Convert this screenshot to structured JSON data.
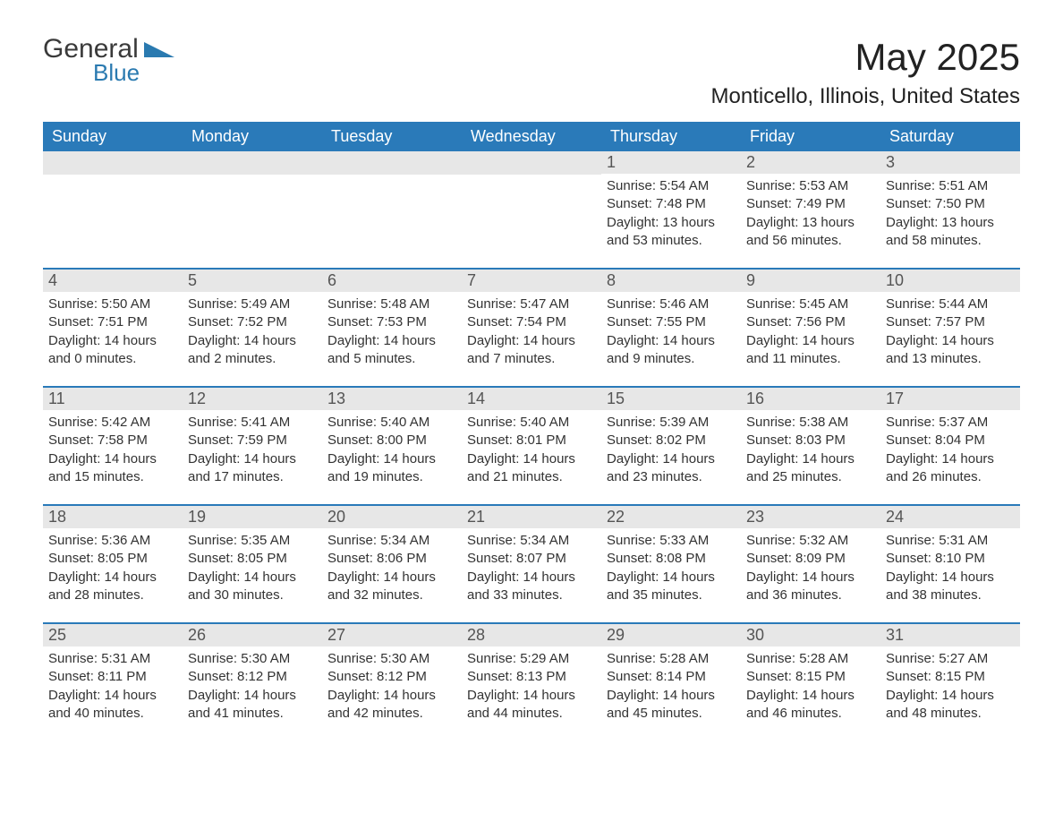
{
  "logo": {
    "part1": "General",
    "part2": "Blue"
  },
  "title": "May 2025",
  "location": "Monticello, Illinois, United States",
  "day_names": [
    "Sunday",
    "Monday",
    "Tuesday",
    "Wednesday",
    "Thursday",
    "Friday",
    "Saturday"
  ],
  "colors": {
    "header_bg": "#2a7ab9",
    "header_text": "#ffffff",
    "daynum_bg": "#e7e7e7",
    "border": "#2a7ab9",
    "logo_accent": "#2a7ab0"
  },
  "weeks": [
    [
      null,
      null,
      null,
      null,
      {
        "day": "1",
        "sunrise": "Sunrise: 5:54 AM",
        "sunset": "Sunset: 7:48 PM",
        "daylight1": "Daylight: 13 hours",
        "daylight2": "and 53 minutes."
      },
      {
        "day": "2",
        "sunrise": "Sunrise: 5:53 AM",
        "sunset": "Sunset: 7:49 PM",
        "daylight1": "Daylight: 13 hours",
        "daylight2": "and 56 minutes."
      },
      {
        "day": "3",
        "sunrise": "Sunrise: 5:51 AM",
        "sunset": "Sunset: 7:50 PM",
        "daylight1": "Daylight: 13 hours",
        "daylight2": "and 58 minutes."
      }
    ],
    [
      {
        "day": "4",
        "sunrise": "Sunrise: 5:50 AM",
        "sunset": "Sunset: 7:51 PM",
        "daylight1": "Daylight: 14 hours",
        "daylight2": "and 0 minutes."
      },
      {
        "day": "5",
        "sunrise": "Sunrise: 5:49 AM",
        "sunset": "Sunset: 7:52 PM",
        "daylight1": "Daylight: 14 hours",
        "daylight2": "and 2 minutes."
      },
      {
        "day": "6",
        "sunrise": "Sunrise: 5:48 AM",
        "sunset": "Sunset: 7:53 PM",
        "daylight1": "Daylight: 14 hours",
        "daylight2": "and 5 minutes."
      },
      {
        "day": "7",
        "sunrise": "Sunrise: 5:47 AM",
        "sunset": "Sunset: 7:54 PM",
        "daylight1": "Daylight: 14 hours",
        "daylight2": "and 7 minutes."
      },
      {
        "day": "8",
        "sunrise": "Sunrise: 5:46 AM",
        "sunset": "Sunset: 7:55 PM",
        "daylight1": "Daylight: 14 hours",
        "daylight2": "and 9 minutes."
      },
      {
        "day": "9",
        "sunrise": "Sunrise: 5:45 AM",
        "sunset": "Sunset: 7:56 PM",
        "daylight1": "Daylight: 14 hours",
        "daylight2": "and 11 minutes."
      },
      {
        "day": "10",
        "sunrise": "Sunrise: 5:44 AM",
        "sunset": "Sunset: 7:57 PM",
        "daylight1": "Daylight: 14 hours",
        "daylight2": "and 13 minutes."
      }
    ],
    [
      {
        "day": "11",
        "sunrise": "Sunrise: 5:42 AM",
        "sunset": "Sunset: 7:58 PM",
        "daylight1": "Daylight: 14 hours",
        "daylight2": "and 15 minutes."
      },
      {
        "day": "12",
        "sunrise": "Sunrise: 5:41 AM",
        "sunset": "Sunset: 7:59 PM",
        "daylight1": "Daylight: 14 hours",
        "daylight2": "and 17 minutes."
      },
      {
        "day": "13",
        "sunrise": "Sunrise: 5:40 AM",
        "sunset": "Sunset: 8:00 PM",
        "daylight1": "Daylight: 14 hours",
        "daylight2": "and 19 minutes."
      },
      {
        "day": "14",
        "sunrise": "Sunrise: 5:40 AM",
        "sunset": "Sunset: 8:01 PM",
        "daylight1": "Daylight: 14 hours",
        "daylight2": "and 21 minutes."
      },
      {
        "day": "15",
        "sunrise": "Sunrise: 5:39 AM",
        "sunset": "Sunset: 8:02 PM",
        "daylight1": "Daylight: 14 hours",
        "daylight2": "and 23 minutes."
      },
      {
        "day": "16",
        "sunrise": "Sunrise: 5:38 AM",
        "sunset": "Sunset: 8:03 PM",
        "daylight1": "Daylight: 14 hours",
        "daylight2": "and 25 minutes."
      },
      {
        "day": "17",
        "sunrise": "Sunrise: 5:37 AM",
        "sunset": "Sunset: 8:04 PM",
        "daylight1": "Daylight: 14 hours",
        "daylight2": "and 26 minutes."
      }
    ],
    [
      {
        "day": "18",
        "sunrise": "Sunrise: 5:36 AM",
        "sunset": "Sunset: 8:05 PM",
        "daylight1": "Daylight: 14 hours",
        "daylight2": "and 28 minutes."
      },
      {
        "day": "19",
        "sunrise": "Sunrise: 5:35 AM",
        "sunset": "Sunset: 8:05 PM",
        "daylight1": "Daylight: 14 hours",
        "daylight2": "and 30 minutes."
      },
      {
        "day": "20",
        "sunrise": "Sunrise: 5:34 AM",
        "sunset": "Sunset: 8:06 PM",
        "daylight1": "Daylight: 14 hours",
        "daylight2": "and 32 minutes."
      },
      {
        "day": "21",
        "sunrise": "Sunrise: 5:34 AM",
        "sunset": "Sunset: 8:07 PM",
        "daylight1": "Daylight: 14 hours",
        "daylight2": "and 33 minutes."
      },
      {
        "day": "22",
        "sunrise": "Sunrise: 5:33 AM",
        "sunset": "Sunset: 8:08 PM",
        "daylight1": "Daylight: 14 hours",
        "daylight2": "and 35 minutes."
      },
      {
        "day": "23",
        "sunrise": "Sunrise: 5:32 AM",
        "sunset": "Sunset: 8:09 PM",
        "daylight1": "Daylight: 14 hours",
        "daylight2": "and 36 minutes."
      },
      {
        "day": "24",
        "sunrise": "Sunrise: 5:31 AM",
        "sunset": "Sunset: 8:10 PM",
        "daylight1": "Daylight: 14 hours",
        "daylight2": "and 38 minutes."
      }
    ],
    [
      {
        "day": "25",
        "sunrise": "Sunrise: 5:31 AM",
        "sunset": "Sunset: 8:11 PM",
        "daylight1": "Daylight: 14 hours",
        "daylight2": "and 40 minutes."
      },
      {
        "day": "26",
        "sunrise": "Sunrise: 5:30 AM",
        "sunset": "Sunset: 8:12 PM",
        "daylight1": "Daylight: 14 hours",
        "daylight2": "and 41 minutes."
      },
      {
        "day": "27",
        "sunrise": "Sunrise: 5:30 AM",
        "sunset": "Sunset: 8:12 PM",
        "daylight1": "Daylight: 14 hours",
        "daylight2": "and 42 minutes."
      },
      {
        "day": "28",
        "sunrise": "Sunrise: 5:29 AM",
        "sunset": "Sunset: 8:13 PM",
        "daylight1": "Daylight: 14 hours",
        "daylight2": "and 44 minutes."
      },
      {
        "day": "29",
        "sunrise": "Sunrise: 5:28 AM",
        "sunset": "Sunset: 8:14 PM",
        "daylight1": "Daylight: 14 hours",
        "daylight2": "and 45 minutes."
      },
      {
        "day": "30",
        "sunrise": "Sunrise: 5:28 AM",
        "sunset": "Sunset: 8:15 PM",
        "daylight1": "Daylight: 14 hours",
        "daylight2": "and 46 minutes."
      },
      {
        "day": "31",
        "sunrise": "Sunrise: 5:27 AM",
        "sunset": "Sunset: 8:15 PM",
        "daylight1": "Daylight: 14 hours",
        "daylight2": "and 48 minutes."
      }
    ]
  ]
}
